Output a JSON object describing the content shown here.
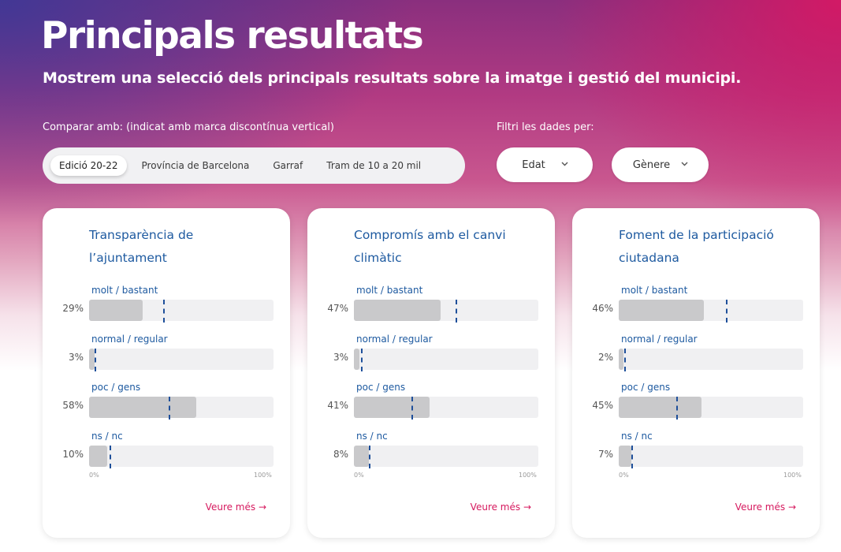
{
  "header": {
    "title": "Principals resultats",
    "subtitle": "Mostrem una selecció dels principals resultats sobre la imatge i gestió del municipi."
  },
  "compare": {
    "label": "Comparar amb: (indicat amb marca discontínua vertical)",
    "options": [
      "Edició 20-22",
      "Província de Barcelona",
      "Garraf",
      "Tram de 10 a 20 mil"
    ],
    "active_index": 0
  },
  "filters": {
    "label": "Filtri les dades per:",
    "age": "Edat",
    "gender": "Gènere"
  },
  "axis": {
    "min": "0%",
    "max": "100%"
  },
  "colors": {
    "accent": "#d6195e",
    "title_blue": "#1e5aa0",
    "marker": "#1e4f9a",
    "bar": "#c9c9cb",
    "track": "#f0f0f2"
  },
  "cards": [
    {
      "title": "Transparència de l’ajuntament",
      "rows": [
        {
          "label": "molt / bastant",
          "pct": "29%",
          "value": 29,
          "compare": 40
        },
        {
          "label": "normal / regular",
          "pct": "3%",
          "value": 3,
          "compare": 3
        },
        {
          "label": "poc / gens",
          "pct": "58%",
          "value": 58,
          "compare": 43
        },
        {
          "label": "ns / nc",
          "pct": "10%",
          "value": 10,
          "compare": 11
        }
      ],
      "see_more": "Veure més →"
    },
    {
      "title": "Compromís amb el canvi climàtic",
      "rows": [
        {
          "label": "molt / bastant",
          "pct": "47%",
          "value": 47,
          "compare": 55
        },
        {
          "label": "normal / regular",
          "pct": "3%",
          "value": 3,
          "compare": 4
        },
        {
          "label": "poc / gens",
          "pct": "41%",
          "value": 41,
          "compare": 31
        },
        {
          "label": "ns / nc",
          "pct": "8%",
          "value": 8,
          "compare": 8
        }
      ],
      "see_more": "Veure més →"
    },
    {
      "title": "Foment de la participació ciutadana",
      "rows": [
        {
          "label": "molt / bastant",
          "pct": "46%",
          "value": 46,
          "compare": 58
        },
        {
          "label": "normal / regular",
          "pct": "2%",
          "value": 2,
          "compare": 3
        },
        {
          "label": "poc / gens",
          "pct": "45%",
          "value": 45,
          "compare": 31
        },
        {
          "label": "ns / nc",
          "pct": "7%",
          "value": 7,
          "compare": 7
        }
      ],
      "see_more": "Veure més →"
    }
  ]
}
